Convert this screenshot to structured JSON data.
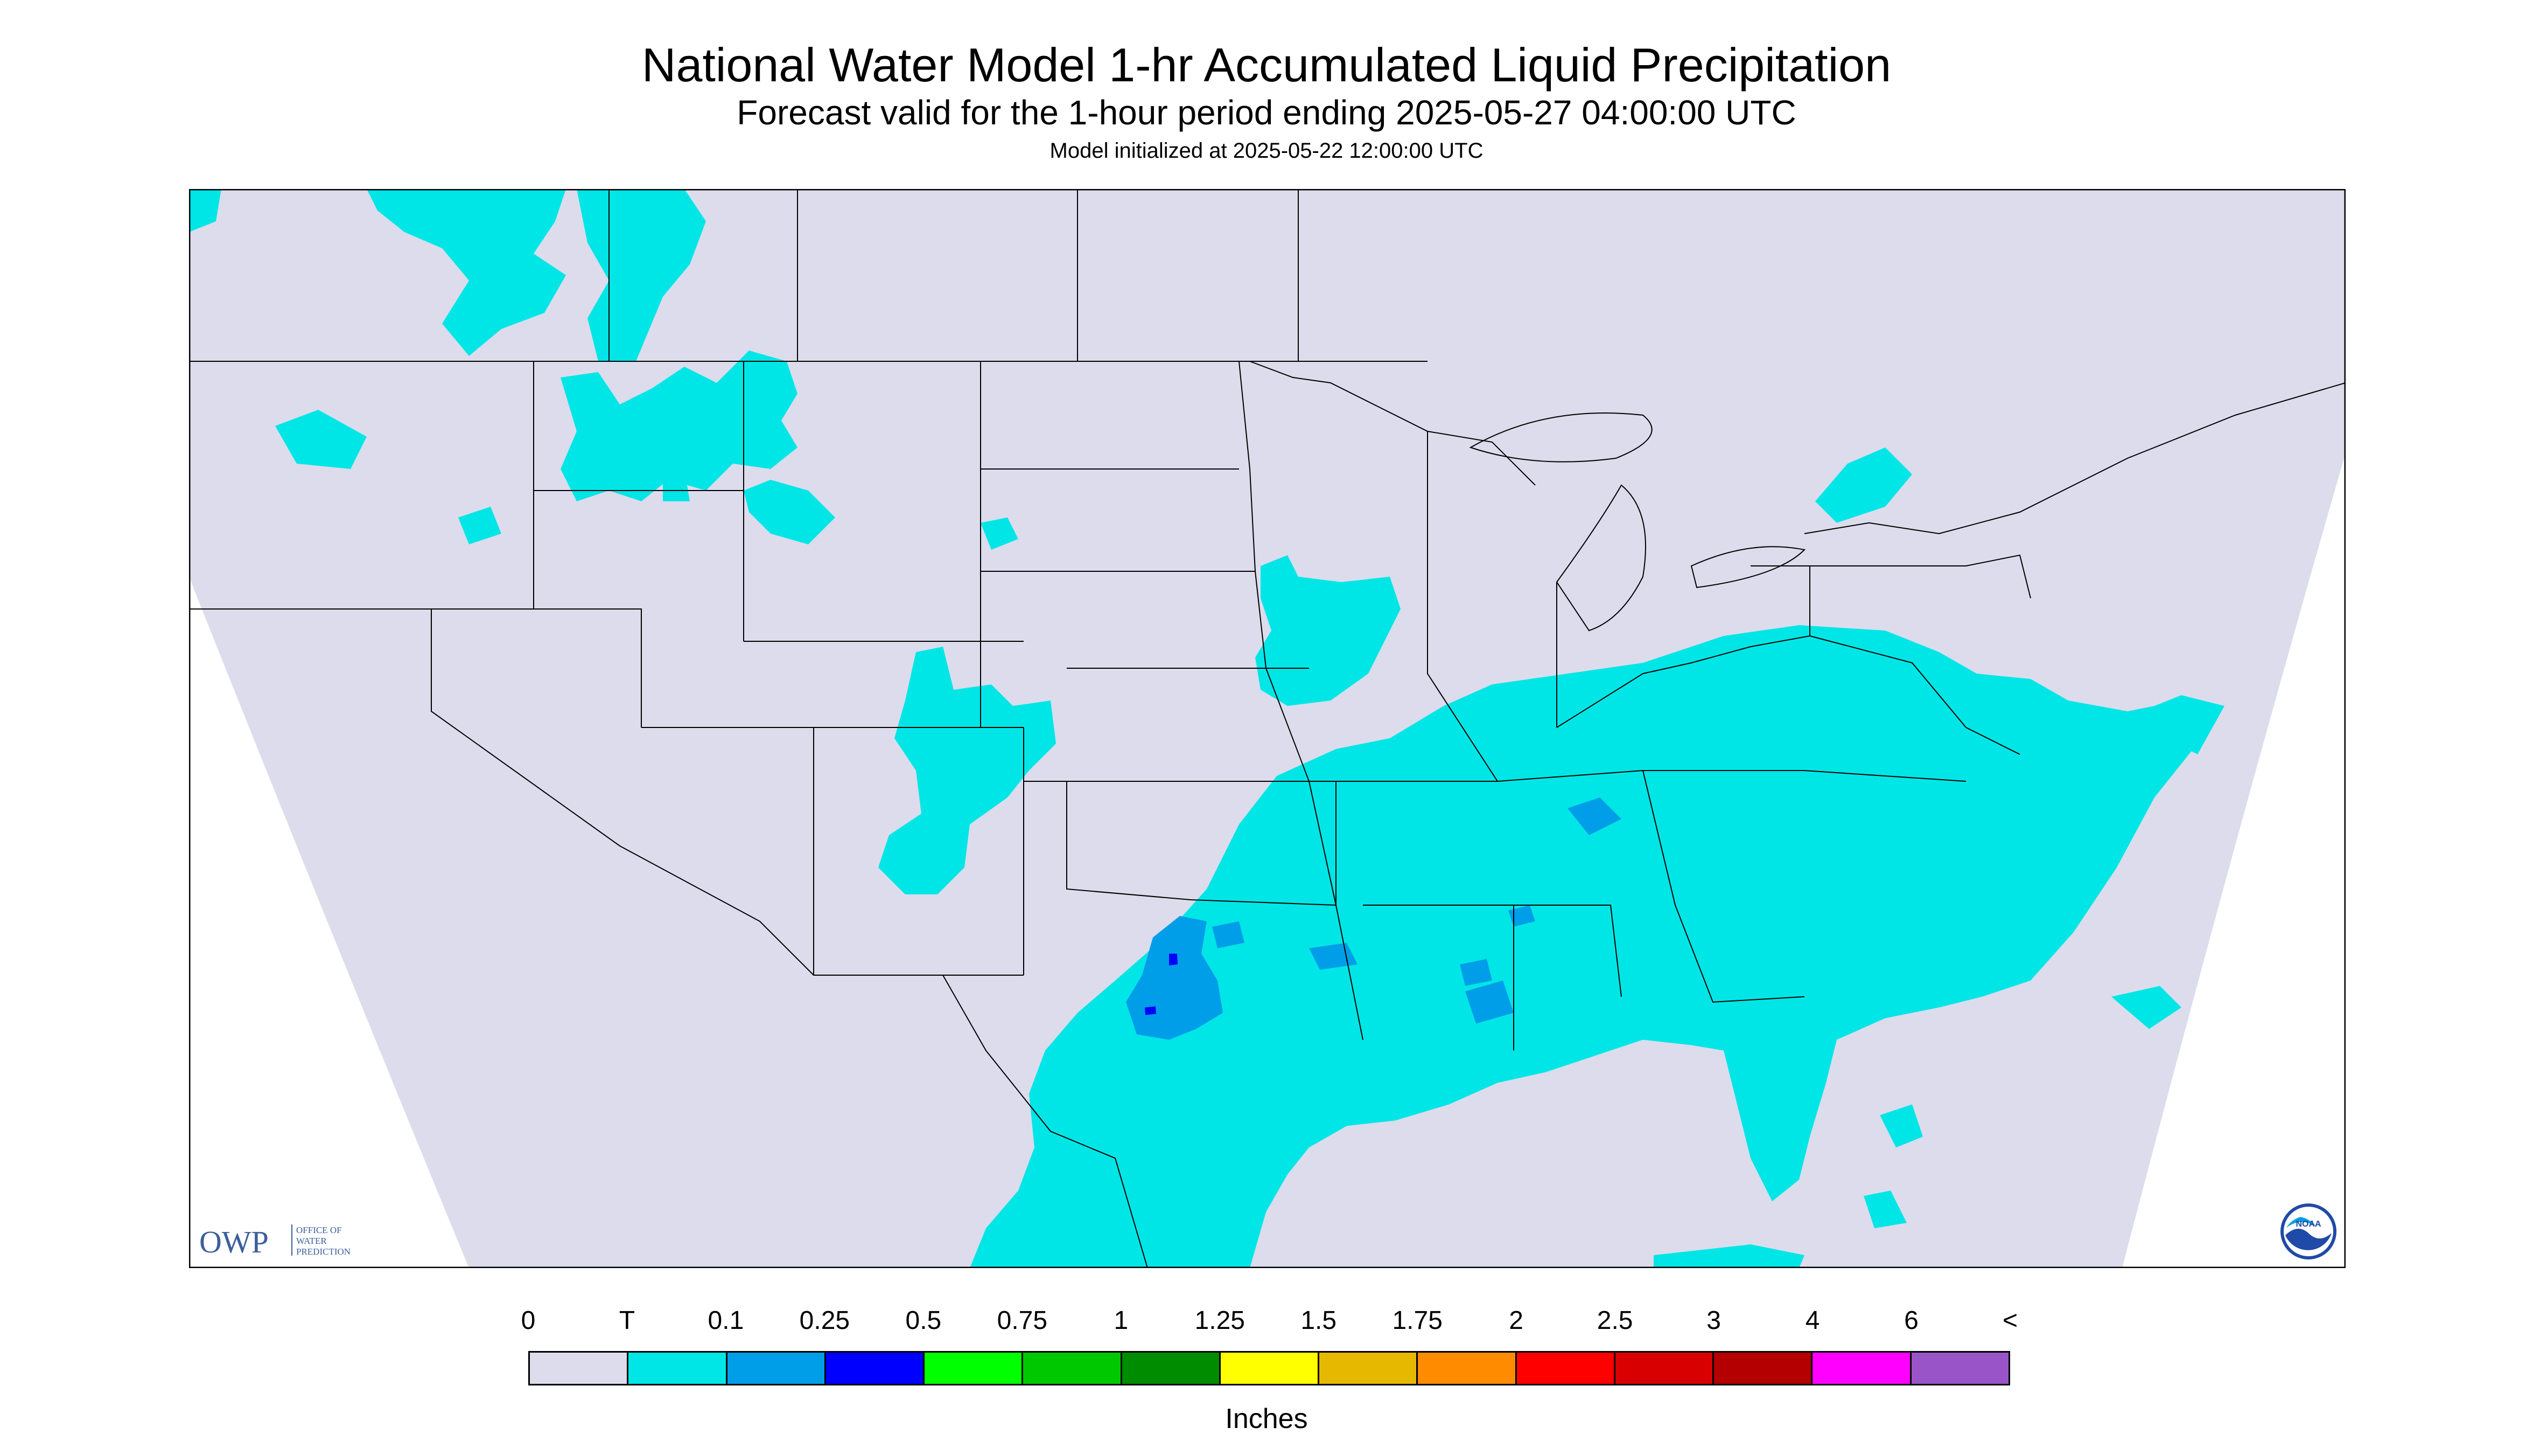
{
  "header": {
    "title": "National Water Model 1-hr Accumulated Liquid Precipitation",
    "subtitle": "Forecast valid for the 1-hour period ending 2025-05-27 04:00:00 UTC",
    "init_note": "Model initialized at 2025-05-22 12:00:00 UTC"
  },
  "map": {
    "region": "Continental United States",
    "background_color": "#dcdcec",
    "outer_color": "#ffffff",
    "precip_color_trace": "#00e6e6",
    "precip_color_010": "#009ee8",
    "precip_color_025": "#0000ff",
    "boundary_color": "#000000",
    "precip_areas": [
      {
        "name": "pacific-northwest-trace",
        "level": "T"
      },
      {
        "name": "idaho-montana-trace",
        "level": "T"
      },
      {
        "name": "colorado-new-mexico-trace",
        "level": "T"
      },
      {
        "name": "upper-midwest-trace",
        "level": "T"
      },
      {
        "name": "great-lakes-ontario-trace",
        "level": "T"
      },
      {
        "name": "southern-eastern-us-trace",
        "level": "T"
      },
      {
        "name": "atlantic-offshore-trace",
        "level": "T"
      },
      {
        "name": "south-texas-trace",
        "level": "T"
      },
      {
        "name": "texas-core-0.1",
        "level": "0.1"
      },
      {
        "name": "texas-core-0.25",
        "level": "0.25"
      },
      {
        "name": "southeast-0.1-spots",
        "level": "0.1"
      }
    ]
  },
  "logos": {
    "owp_letters": "OWP",
    "owp_line1": "OFFICE OF",
    "owp_line2": "WATER",
    "owp_line3": "PREDICTION",
    "noaa_text": "NOAA"
  },
  "legend": {
    "tick_labels": [
      "0",
      "T",
      "0.1",
      "0.25",
      "0.5",
      "0.75",
      "1",
      "1.25",
      "1.5",
      "1.75",
      "2",
      "2.5",
      "3",
      "4",
      "6",
      "<"
    ],
    "colors": [
      "#dcdcec",
      "#00e6e6",
      "#009ee8",
      "#0000ff",
      "#00ff00",
      "#00c800",
      "#008c00",
      "#ffff00",
      "#e6b800",
      "#ff8c00",
      "#ff0000",
      "#d80000",
      "#b40000",
      "#ff00ff",
      "#9955c8"
    ],
    "units": "Inches"
  }
}
